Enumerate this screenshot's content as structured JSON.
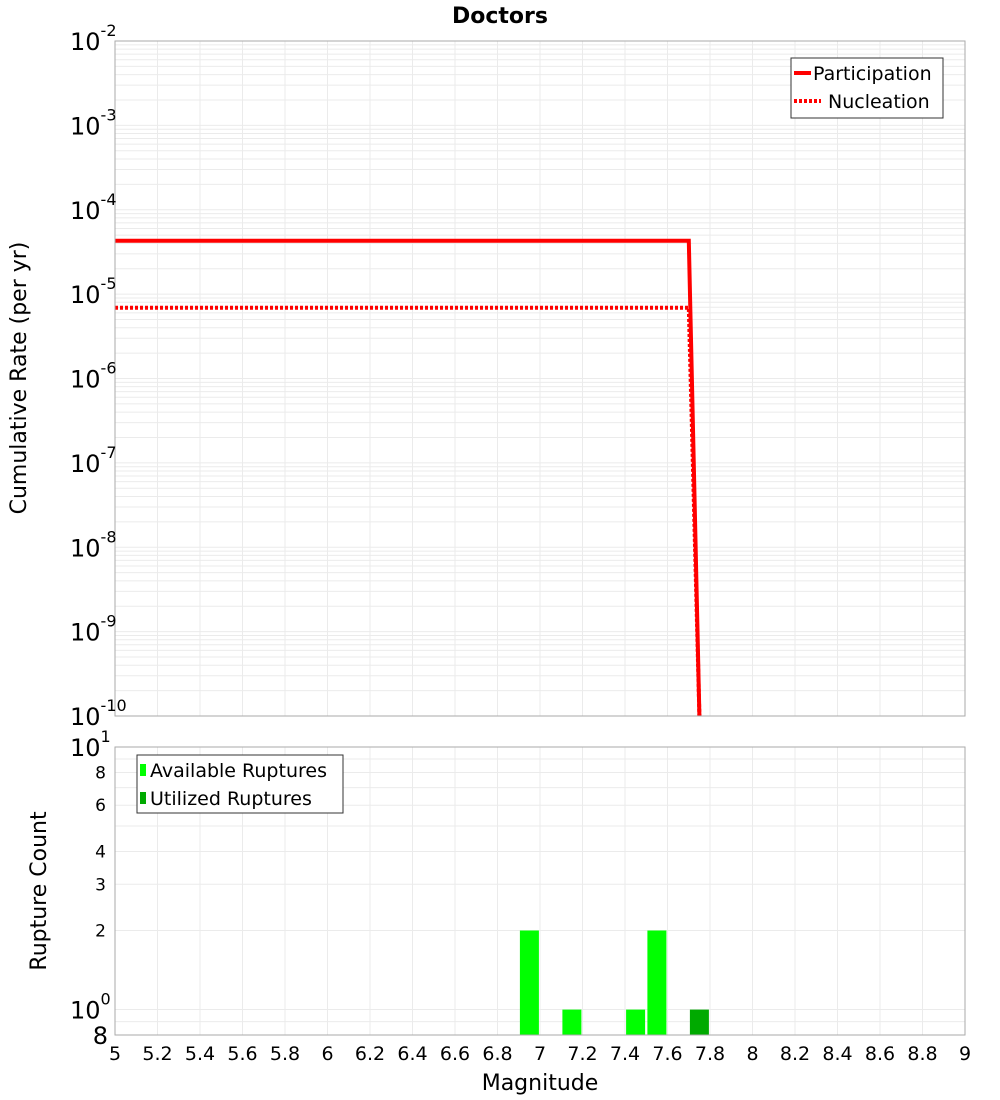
{
  "chart_data": [
    {
      "type": "line",
      "title": "Doctors",
      "xlabel": "Magnitude",
      "ylabel": "Cumulative Rate (per yr)",
      "xlim": [
        5,
        9
      ],
      "ylim": [
        1e-10,
        0.01
      ],
      "yscale": "log",
      "grid": true,
      "legend_position": "top-right",
      "y_ticks": [
        "10^-2",
        "10^-3",
        "10^-4",
        "10^-5",
        "10^-6",
        "10^-7",
        "10^-8",
        "10^-9",
        "10^-10"
      ],
      "series": [
        {
          "name": "Participation",
          "style": "solid",
          "color": "#ff0000",
          "x": [
            5.0,
            7.7,
            7.75
          ],
          "y": [
            4.3e-05,
            4.3e-05,
            1e-10
          ]
        },
        {
          "name": "Nucleation",
          "style": "dotted",
          "color": "#ff0000",
          "x": [
            5.0,
            7.7,
            7.75
          ],
          "y": [
            6.9e-06,
            6.9e-06,
            1e-10
          ]
        }
      ]
    },
    {
      "type": "bar",
      "title": "",
      "xlabel": "Magnitude",
      "ylabel": "Rupture Count",
      "xlim": [
        5,
        9
      ],
      "ylim": [
        0.8,
        10
      ],
      "yscale": "log",
      "grid": true,
      "legend_position": "top-left",
      "y_ticks": [
        "8",
        "10^0",
        "2",
        "3",
        "4",
        "6",
        "8",
        "10^1"
      ],
      "x_ticks": [
        "5",
        "5.2",
        "5.4",
        "5.6",
        "5.8",
        "6",
        "6.2",
        "6.4",
        "6.6",
        "6.8",
        "7",
        "7.2",
        "7.4",
        "7.6",
        "7.8",
        "8",
        "8.2",
        "8.4",
        "8.6",
        "8.8",
        "9"
      ],
      "series": [
        {
          "name": "Available Ruptures",
          "color": "#00ff00",
          "x": [
            6.95,
            7.15,
            7.45,
            7.55
          ],
          "values": [
            2,
            1,
            1,
            2
          ]
        },
        {
          "name": "Utilized Ruptures",
          "color": "#00aa00",
          "x": [
            7.75
          ],
          "values": [
            1
          ]
        }
      ]
    }
  ],
  "labels": {
    "title": "Doctors",
    "top_ylabel": "Cumulative Rate (per yr)",
    "bottom_ylabel": "Rupture Count",
    "xlabel": "Magnitude",
    "legend_top": [
      "Participation",
      "Nucleation"
    ],
    "legend_bottom": [
      "Available Ruptures",
      "Utilized Ruptures"
    ]
  },
  "colors": {
    "rate_line": "#ff0000",
    "available": "#00ff00",
    "utilized": "#00aa00",
    "grid": "#ebebeb",
    "frame": "#aaaaaa"
  }
}
